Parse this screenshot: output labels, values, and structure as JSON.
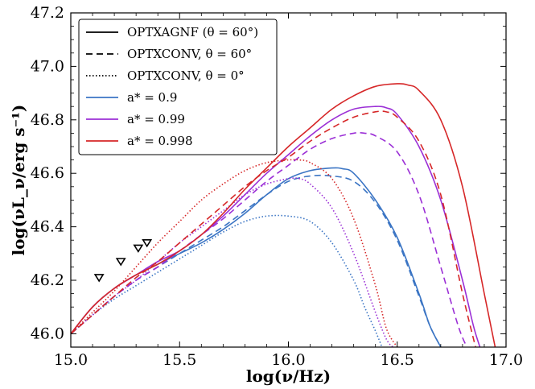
{
  "chart_data": {
    "type": "line",
    "xlabel": "log(ν/Hz)",
    "ylabel": "log(νL_ν/erg s⁻¹)",
    "xlim": [
      15.0,
      17.0
    ],
    "ylim": [
      45.95,
      47.2
    ],
    "xticks": [
      "15.0",
      "15.5",
      "16.0",
      "16.5",
      "17.0"
    ],
    "yticks": [
      "46.0",
      "46.2",
      "46.4",
      "46.6",
      "46.8",
      "47.0",
      "47.2"
    ],
    "legend_position": "top-left",
    "legend": [
      {
        "label": "OPTXAGNF (θ = 60°)",
        "style": "solid",
        "color": "#000000"
      },
      {
        "label": "OPTXCONV, θ = 60°",
        "style": "dashed",
        "color": "#000000"
      },
      {
        "label": "OPTXCONV, θ = 0°",
        "style": "dotted",
        "color": "#000000"
      },
      {
        "label": "a* = 0.9",
        "style": "solid",
        "color": "#3b75c4"
      },
      {
        "label": "a* = 0.99",
        "style": "solid",
        "color": "#9b2fd6"
      },
      {
        "label": "a* = 0.998",
        "style": "solid",
        "color": "#d62728"
      }
    ],
    "series": [
      {
        "color": "#3b75c4",
        "style": "solid",
        "x": [
          15.0,
          15.1,
          15.2,
          15.3,
          15.4,
          15.5,
          15.6,
          15.7,
          15.8,
          15.9,
          16.0,
          16.1,
          16.2,
          16.25,
          16.3,
          16.4,
          16.5,
          16.6,
          16.65,
          16.7
        ],
        "y": [
          46.0,
          46.1,
          46.17,
          46.22,
          46.26,
          46.3,
          46.34,
          46.39,
          46.45,
          46.52,
          46.58,
          46.61,
          46.62,
          46.617,
          46.6,
          46.5,
          46.36,
          46.15,
          46.03,
          45.95
        ]
      },
      {
        "color": "#3b75c4",
        "style": "dashed",
        "x": [
          15.0,
          15.1,
          15.2,
          15.3,
          15.4,
          15.5,
          15.6,
          15.7,
          15.8,
          15.9,
          16.0,
          16.1,
          16.2,
          16.3,
          16.4,
          16.5,
          16.6,
          16.65,
          16.7
        ],
        "y": [
          46.0,
          46.07,
          46.14,
          46.2,
          46.25,
          46.3,
          46.35,
          46.4,
          46.46,
          46.52,
          46.57,
          46.59,
          46.59,
          46.57,
          46.49,
          46.35,
          46.14,
          46.03,
          45.95
        ]
      },
      {
        "color": "#3b75c4",
        "style": "dotted",
        "x": [
          15.0,
          15.1,
          15.2,
          15.3,
          15.4,
          15.5,
          15.6,
          15.7,
          15.8,
          15.9,
          16.0,
          16.1,
          16.2,
          16.3,
          16.35,
          16.4,
          16.43
        ],
        "y": [
          46.0,
          46.07,
          46.13,
          46.18,
          46.23,
          46.28,
          46.33,
          46.38,
          46.42,
          46.44,
          46.44,
          46.42,
          46.34,
          46.2,
          46.1,
          46.01,
          45.95
        ]
      },
      {
        "color": "#9b2fd6",
        "style": "solid",
        "x": [
          15.0,
          15.1,
          15.2,
          15.3,
          15.4,
          15.5,
          15.6,
          15.7,
          15.8,
          15.9,
          16.0,
          16.1,
          16.2,
          16.3,
          16.4,
          16.45,
          16.5,
          16.6,
          16.7,
          16.8,
          16.85,
          16.88
        ],
        "y": [
          46.0,
          46.1,
          46.17,
          46.22,
          46.27,
          46.31,
          46.37,
          46.44,
          46.52,
          46.6,
          46.67,
          46.74,
          46.8,
          46.84,
          46.85,
          46.845,
          46.82,
          46.7,
          46.5,
          46.2,
          46.03,
          45.95
        ]
      },
      {
        "color": "#9b2fd6",
        "style": "dashed",
        "x": [
          15.0,
          15.1,
          15.2,
          15.3,
          15.4,
          15.5,
          15.6,
          15.7,
          15.8,
          15.9,
          16.0,
          16.1,
          16.2,
          16.3,
          16.35,
          16.4,
          16.5,
          16.6,
          16.7,
          16.78,
          16.82
        ],
        "y": [
          46.0,
          46.07,
          46.14,
          46.2,
          46.25,
          46.31,
          46.37,
          46.43,
          46.5,
          46.57,
          46.63,
          46.69,
          46.73,
          46.75,
          46.75,
          46.74,
          46.68,
          46.52,
          46.25,
          46.03,
          45.95
        ]
      },
      {
        "color": "#9b2fd6",
        "style": "dotted",
        "x": [
          15.0,
          15.1,
          15.2,
          15.3,
          15.4,
          15.5,
          15.6,
          15.7,
          15.8,
          15.9,
          16.0,
          16.05,
          16.1,
          16.2,
          16.3,
          16.4,
          16.45,
          16.48
        ],
        "y": [
          46.0,
          46.07,
          46.14,
          46.2,
          46.27,
          46.34,
          46.4,
          46.46,
          46.52,
          46.56,
          46.58,
          46.58,
          46.56,
          46.47,
          46.3,
          46.08,
          45.98,
          45.95
        ]
      },
      {
        "color": "#d62728",
        "style": "solid",
        "x": [
          15.0,
          15.1,
          15.2,
          15.3,
          15.4,
          15.5,
          15.6,
          15.7,
          15.8,
          15.9,
          16.0,
          16.1,
          16.2,
          16.3,
          16.4,
          16.5,
          16.55,
          16.6,
          16.7,
          16.8,
          16.9,
          16.95
        ],
        "y": [
          46.0,
          46.1,
          46.17,
          46.22,
          46.26,
          46.31,
          46.37,
          46.45,
          46.54,
          46.62,
          46.7,
          46.77,
          46.84,
          46.89,
          46.925,
          46.935,
          46.93,
          46.91,
          46.8,
          46.55,
          46.15,
          45.95
        ]
      },
      {
        "color": "#d62728",
        "style": "dashed",
        "x": [
          15.0,
          15.1,
          15.2,
          15.3,
          15.4,
          15.5,
          15.6,
          15.7,
          15.8,
          15.9,
          16.0,
          16.1,
          16.2,
          16.3,
          16.4,
          16.45,
          16.5,
          16.6,
          16.7,
          16.8,
          16.86
        ],
        "y": [
          46.0,
          46.07,
          46.14,
          46.21,
          46.27,
          46.34,
          46.41,
          46.48,
          46.55,
          46.61,
          46.66,
          46.72,
          46.77,
          46.81,
          46.83,
          46.83,
          46.81,
          46.72,
          46.52,
          46.15,
          45.95
        ]
      },
      {
        "color": "#d62728",
        "style": "dotted",
        "x": [
          15.0,
          15.1,
          15.2,
          15.3,
          15.4,
          15.5,
          15.6,
          15.7,
          15.8,
          15.9,
          16.0,
          16.05,
          16.1,
          16.2,
          16.3,
          16.4,
          16.45,
          16.5
        ],
        "y": [
          46.0,
          46.08,
          46.16,
          46.25,
          46.34,
          46.42,
          46.5,
          46.56,
          46.61,
          46.64,
          46.65,
          46.65,
          46.64,
          46.58,
          46.43,
          46.18,
          46.02,
          45.95
        ]
      }
    ],
    "markers": {
      "shape": "triangle-down",
      "x": [
        15.13,
        15.23,
        15.31,
        15.35
      ],
      "y": [
        46.21,
        46.27,
        46.32,
        46.34
      ]
    }
  }
}
